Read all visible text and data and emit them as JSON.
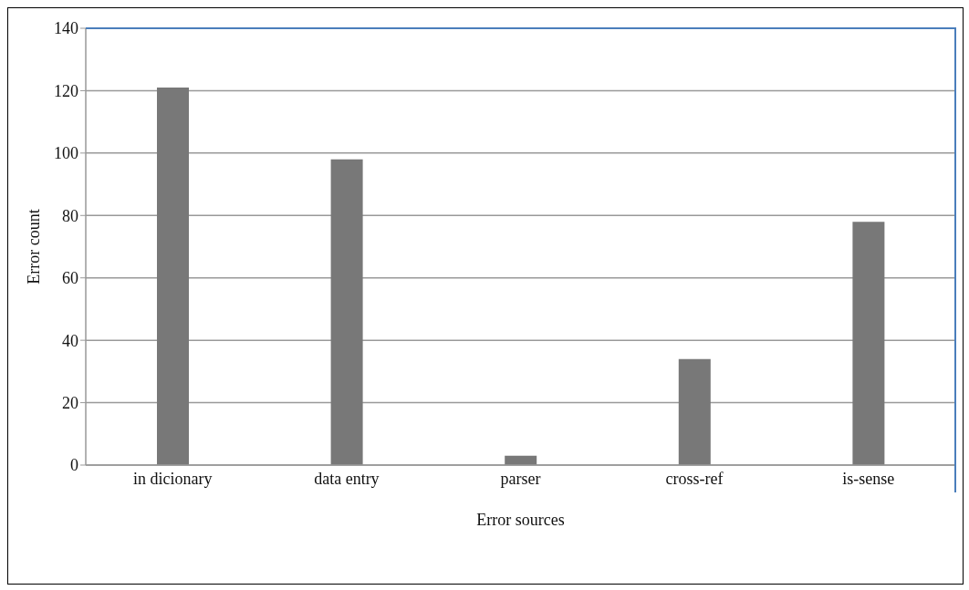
{
  "chart_data": {
    "type": "bar",
    "xlabel": "Error sources",
    "ylabel": "Error count",
    "categories": [
      "in dicionary",
      "data entry",
      "parser",
      "cross-ref",
      "is-sense"
    ],
    "values": [
      121,
      98,
      3,
      34,
      78
    ],
    "color": "#787878",
    "ylim": [
      0,
      140
    ],
    "yticks": [
      0,
      20,
      40,
      60,
      80,
      100,
      120,
      140
    ],
    "grid": "y"
  }
}
